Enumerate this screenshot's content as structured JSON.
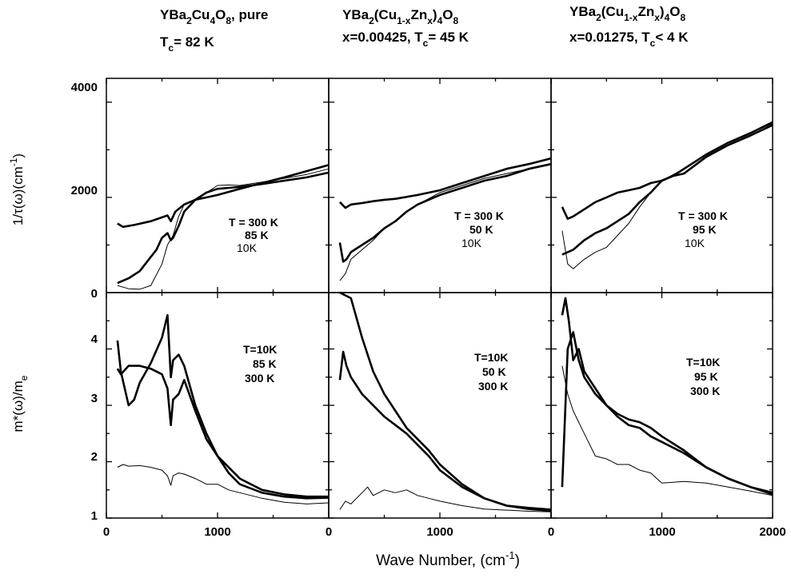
{
  "titles": [
    {
      "main": "YBa",
      "s1": "2",
      "m2": "Cu",
      "s2": "4",
      "m3": "O",
      "s3": "8",
      "m4": ",  pure",
      "line2a": "T",
      "line2sub": "c",
      "line2b": "= 82 K"
    },
    {
      "main": "YBa",
      "s1": "2",
      "m2": "(Cu",
      "s2": "1-x",
      "m3": "Zn",
      "s3": "x",
      "m4": ")",
      "s4": "4",
      "m5": "O",
      "s5": "8",
      "line2a": "x=0.00425, T",
      "line2sub": "c",
      "line2b": "= 45 K"
    },
    {
      "main": "YBa",
      "s1": "2",
      "m2": "(Cu",
      "s2": "1-x",
      "m3": "Zn",
      "s3": "x",
      "m4": ")",
      "s4": "4",
      "m5": "O",
      "s5": "8",
      "line2a": "x=0.01275, T",
      "line2sub": "c",
      "line2b": "< 4 K"
    }
  ],
  "axes": {
    "top_ylabel": {
      "pre": "1/τ(ω)(cm",
      "sup": "-1",
      "post": ")"
    },
    "bottom_ylabel": {
      "pre": "m*(ω)/m",
      "sub": "e"
    },
    "xlabel": {
      "pre": "Wave Number,  (cm",
      "sup": "-1",
      "post": ")"
    },
    "top_yticks": [
      "0",
      "2000",
      "4000"
    ],
    "bottom_yticks": [
      "1",
      "2",
      "3",
      "4"
    ],
    "xticks_col0": [
      "0",
      "1000"
    ],
    "xticks_col1": [
      "0",
      "1000"
    ],
    "xticks_col2": [
      "0",
      "1000",
      "2000"
    ]
  },
  "legends": {
    "top": [
      [
        "T = 300 K",
        "85 K",
        "10K"
      ],
      [
        "T = 300 K",
        "50 K",
        "10K"
      ],
      [
        "T = 300 K",
        "95 K",
        "10K"
      ]
    ],
    "bottom": [
      [
        "T=10K",
        "85 K",
        "300 K"
      ],
      [
        "T=10K",
        "50 K",
        "300 K"
      ],
      [
        "T=10K",
        "95 K",
        "300 K"
      ]
    ]
  },
  "chart_data": [
    {
      "type": "line",
      "panel": "top-left",
      "xlim": [
        0,
        2000
      ],
      "ylim": [
        0,
        4500
      ],
      "series": [
        {
          "name": "300 K",
          "x": [
            100,
            150,
            250,
            400,
            500,
            550,
            580,
            620,
            700,
            800,
            1000,
            1200,
            1400,
            1600,
            1800,
            2000
          ],
          "y": [
            1450,
            1380,
            1420,
            1500,
            1580,
            1620,
            1500,
            1700,
            1850,
            1950,
            2050,
            2180,
            2300,
            2420,
            2550,
            2680
          ]
        },
        {
          "name": "85 K",
          "x": [
            100,
            200,
            300,
            400,
            450,
            500,
            550,
            580,
            600,
            650,
            700,
            800,
            900,
            1000,
            1100,
            1200,
            1400,
            1600,
            1800,
            2000
          ],
          "y": [
            200,
            300,
            450,
            750,
            900,
            1150,
            1250,
            1100,
            1150,
            1400,
            1700,
            1950,
            2100,
            2180,
            2200,
            2220,
            2280,
            2350,
            2420,
            2520
          ]
        },
        {
          "name": "10K",
          "x": [
            100,
            200,
            300,
            400,
            500,
            550,
            600,
            650,
            700,
            800,
            900,
            1000,
            1100,
            1200,
            1400,
            1600,
            1800,
            2000
          ],
          "y": [
            150,
            80,
            70,
            150,
            600,
            1000,
            1200,
            1600,
            1850,
            1950,
            2100,
            2250,
            2260,
            2250,
            2320,
            2400,
            2480,
            2600
          ]
        }
      ]
    },
    {
      "type": "line",
      "panel": "top-middle",
      "xlim": [
        0,
        2000
      ],
      "ylim": [
        0,
        4500
      ],
      "series": [
        {
          "name": "300 K",
          "x": [
            100,
            150,
            200,
            300,
            400,
            500,
            600,
            800,
            1000,
            1200,
            1400,
            1600,
            1800,
            2000
          ],
          "y": [
            1900,
            1780,
            1850,
            1880,
            1920,
            1950,
            1970,
            2050,
            2150,
            2300,
            2450,
            2600,
            2700,
            2820
          ]
        },
        {
          "name": "50 K",
          "x": [
            100,
            130,
            160,
            200,
            300,
            400,
            500,
            600,
            700,
            800,
            1000,
            1200,
            1400,
            1600,
            1800,
            2000
          ],
          "y": [
            1050,
            650,
            700,
            850,
            1000,
            1150,
            1350,
            1500,
            1700,
            1850,
            2050,
            2200,
            2350,
            2450,
            2600,
            2700
          ]
        },
        {
          "name": "10K",
          "x": [
            100,
            150,
            200,
            300,
            400,
            500,
            600,
            700,
            800,
            1000,
            1200,
            1400,
            1600,
            1800,
            2000
          ],
          "y": [
            250,
            400,
            700,
            900,
            1100,
            1350,
            1500,
            1700,
            1850,
            2100,
            2250,
            2400,
            2500,
            2600,
            2700
          ]
        }
      ]
    },
    {
      "type": "line",
      "panel": "top-right",
      "xlim": [
        0,
        2000
      ],
      "ylim": [
        0,
        4500
      ],
      "series": [
        {
          "name": "300 K",
          "x": [
            100,
            150,
            200,
            300,
            400,
            500,
            600,
            700,
            800,
            900,
            1000,
            1100,
            1200,
            1400,
            1600,
            1800,
            2000
          ],
          "y": [
            1800,
            1550,
            1600,
            1750,
            1900,
            2000,
            2100,
            2150,
            2200,
            2300,
            2350,
            2450,
            2600,
            2900,
            3150,
            3350,
            3580
          ]
        },
        {
          "name": "95 K",
          "x": [
            100,
            200,
            300,
            400,
            500,
            600,
            700,
            800,
            900,
            1000,
            1100,
            1200,
            1400,
            1600,
            1800,
            2000
          ],
          "y": [
            800,
            900,
            1100,
            1250,
            1350,
            1500,
            1650,
            1900,
            2100,
            2350,
            2450,
            2500,
            2850,
            3100,
            3300,
            3520
          ]
        },
        {
          "name": "10K",
          "x": [
            100,
            150,
            200,
            300,
            400,
            500,
            600,
            700,
            800,
            900,
            1000,
            1200,
            1400,
            1600,
            1800,
            2000
          ],
          "y": [
            1300,
            600,
            500,
            700,
            850,
            950,
            1200,
            1450,
            1800,
            2100,
            2350,
            2600,
            2900,
            3150,
            3350,
            3550
          ]
        }
      ]
    },
    {
      "type": "line",
      "panel": "bottom-left",
      "xlim": [
        0,
        2000
      ],
      "ylim": [
        1,
        5
      ],
      "series": [
        {
          "name": "10K",
          "x": [
            100,
            130,
            200,
            250,
            300,
            400,
            500,
            550,
            580,
            600,
            650,
            700,
            800,
            900,
            1000,
            1200,
            1400,
            1600,
            1800,
            2000
          ],
          "y": [
            4.15,
            3.6,
            3.0,
            3.1,
            3.4,
            3.75,
            4.2,
            4.6,
            3.5,
            3.8,
            3.9,
            3.7,
            3.0,
            2.5,
            2.1,
            1.7,
            1.5,
            1.42,
            1.38,
            1.38
          ]
        },
        {
          "name": "85 K",
          "x": [
            100,
            130,
            200,
            300,
            400,
            500,
            550,
            580,
            600,
            650,
            700,
            800,
            900,
            1000,
            1100,
            1200,
            1400,
            1600,
            1800,
            2000
          ],
          "y": [
            3.65,
            3.55,
            3.7,
            3.7,
            3.65,
            3.55,
            3.3,
            2.65,
            3.1,
            3.2,
            3.45,
            2.9,
            2.4,
            2.1,
            1.8,
            1.6,
            1.45,
            1.38,
            1.35,
            1.36
          ]
        },
        {
          "name": "300 K",
          "x": [
            100,
            150,
            200,
            300,
            400,
            500,
            550,
            580,
            600,
            650,
            700,
            800,
            900,
            1000,
            1100,
            1200,
            1400,
            1600,
            1800,
            2000
          ],
          "y": [
            1.9,
            1.95,
            1.92,
            1.93,
            1.9,
            1.85,
            1.75,
            1.58,
            1.75,
            1.8,
            1.78,
            1.7,
            1.6,
            1.6,
            1.5,
            1.45,
            1.35,
            1.28,
            1.25,
            1.27
          ]
        }
      ]
    },
    {
      "type": "line",
      "panel": "bottom-middle",
      "xlim": [
        0,
        2000
      ],
      "ylim": [
        1,
        5
      ],
      "series": [
        {
          "name": "10K",
          "x": [
            100,
            200,
            300,
            400,
            500,
            600,
            700,
            800,
            900,
            1000,
            1200,
            1400,
            1600,
            1800,
            2000
          ],
          "y": [
            5.0,
            4.9,
            4.2,
            3.6,
            3.2,
            2.9,
            2.6,
            2.4,
            2.2,
            1.95,
            1.6,
            1.35,
            1.22,
            1.18,
            1.15
          ]
        },
        {
          "name": "50 K",
          "x": [
            100,
            130,
            160,
            200,
            300,
            400,
            500,
            600,
            700,
            800,
            900,
            1000,
            1200,
            1400,
            1600,
            1800,
            2000
          ],
          "y": [
            3.45,
            3.95,
            3.7,
            3.5,
            3.2,
            3.0,
            2.8,
            2.65,
            2.5,
            2.3,
            2.1,
            1.85,
            1.55,
            1.35,
            1.22,
            1.16,
            1.13
          ]
        },
        {
          "name": "300 K",
          "x": [
            100,
            150,
            200,
            300,
            350,
            400,
            500,
            600,
            700,
            800,
            900,
            1000,
            1200,
            1400,
            1600,
            1800,
            2000
          ],
          "y": [
            1.15,
            1.3,
            1.25,
            1.45,
            1.55,
            1.4,
            1.5,
            1.45,
            1.5,
            1.4,
            1.35,
            1.3,
            1.22,
            1.16,
            1.14,
            1.12,
            1.11
          ]
        }
      ]
    },
    {
      "type": "line",
      "panel": "bottom-right",
      "xlim": [
        0,
        2000
      ],
      "ylim": [
        1,
        5
      ],
      "series": [
        {
          "name": "10K",
          "x": [
            100,
            150,
            200,
            250,
            300,
            400,
            500,
            600,
            700,
            800,
            900,
            1000,
            1200,
            1400,
            1600,
            1800,
            2000
          ],
          "y": [
            1.55,
            4.0,
            4.3,
            3.8,
            3.5,
            3.2,
            3.0,
            2.85,
            2.75,
            2.7,
            2.6,
            2.45,
            2.2,
            1.9,
            1.7,
            1.55,
            1.45
          ]
        },
        {
          "name": "95 K",
          "x": [
            100,
            130,
            160,
            200,
            250,
            300,
            400,
            500,
            600,
            700,
            800,
            900,
            1000,
            1200,
            1400,
            1600,
            1800,
            2000
          ],
          "y": [
            4.6,
            4.9,
            4.5,
            3.8,
            4.0,
            3.6,
            3.3,
            3.0,
            2.8,
            2.65,
            2.6,
            2.45,
            2.35,
            2.15,
            1.9,
            1.7,
            1.55,
            1.42
          ]
        },
        {
          "name": "300 K",
          "x": [
            100,
            150,
            200,
            300,
            400,
            500,
            600,
            700,
            800,
            900,
            1000,
            1200,
            1400,
            1600,
            1800,
            2000
          ],
          "y": [
            3.7,
            3.2,
            2.9,
            2.5,
            2.1,
            2.05,
            1.95,
            1.95,
            1.85,
            1.8,
            1.62,
            1.65,
            1.62,
            1.55,
            1.48,
            1.4
          ]
        }
      ]
    }
  ]
}
